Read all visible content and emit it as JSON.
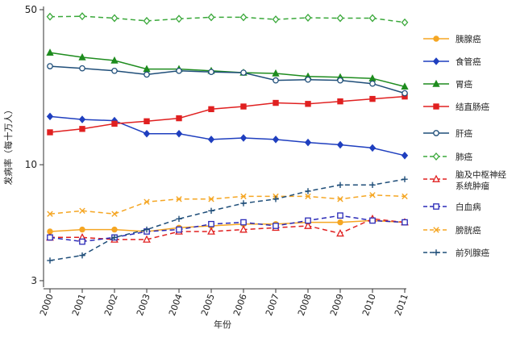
{
  "chart_data": {
    "type": "line",
    "title": "",
    "xlabel": "年份",
    "ylabel": "发病率（每十万人）",
    "yscale": "log",
    "ylim": [
      2.9,
      50
    ],
    "yticks": [
      3,
      10,
      50
    ],
    "ytick_labels": [
      "3",
      "10",
      "50"
    ],
    "x": [
      "2000",
      "2001",
      "2002",
      "2003",
      "2004",
      "2005",
      "2006",
      "2007",
      "2008",
      "2009",
      "2010",
      "2011"
    ],
    "grid": false,
    "legend_position": "right",
    "series": [
      {
        "name": "胰腺癌",
        "color": "#f5a623",
        "marker": "circle-filled",
        "dash": "solid",
        "values": [
          5.0,
          5.1,
          5.1,
          5.0,
          5.2,
          5.3,
          5.4,
          5.4,
          5.5,
          5.5,
          5.6,
          5.5
        ]
      },
      {
        "name": "食管癌",
        "color": "#1f3fbf",
        "marker": "diamond-filled",
        "dash": "solid",
        "values": [
          16.5,
          16.0,
          15.8,
          13.8,
          13.8,
          13.0,
          13.2,
          13.0,
          12.6,
          12.3,
          11.9,
          11.0
        ]
      },
      {
        "name": "胃癌",
        "color": "#1e8c1e",
        "marker": "triangle-filled",
        "dash": "solid",
        "values": [
          32.0,
          30.5,
          29.5,
          27.0,
          27.0,
          26.5,
          26.0,
          25.8,
          25.0,
          24.8,
          24.5,
          22.5
        ]
      },
      {
        "name": "结直肠癌",
        "color": "#e02020",
        "marker": "square-filled",
        "dash": "solid",
        "values": [
          14.0,
          14.5,
          15.3,
          15.7,
          16.2,
          17.8,
          18.3,
          19.0,
          18.8,
          19.3,
          19.8,
          20.3
        ]
      },
      {
        "name": "肝癌",
        "color": "#1f4e79",
        "marker": "circle-open",
        "dash": "solid",
        "values": [
          27.8,
          27.2,
          26.5,
          25.5,
          26.5,
          26.2,
          26.0,
          24.0,
          24.2,
          24.0,
          23.2,
          21.0
        ]
      },
      {
        "name": "肺癌",
        "color": "#3aa83a",
        "marker": "diamond-open",
        "dash": "dashed",
        "values": [
          46.5,
          46.7,
          45.8,
          44.5,
          45.5,
          46.2,
          46.2,
          45.2,
          46.0,
          45.8,
          45.8,
          43.8
        ]
      },
      {
        "name": "脑及中枢神经系统肿瘤",
        "color": "#e02020",
        "marker": "triangle-open",
        "dash": "dashed",
        "values": [
          4.7,
          4.7,
          4.6,
          4.6,
          5.0,
          5.0,
          5.1,
          5.2,
          5.3,
          4.9,
          5.7,
          5.5
        ]
      },
      {
        "name": "白血病",
        "color": "#2a2ab8",
        "marker": "square-open",
        "dash": "dashed",
        "values": [
          4.7,
          4.5,
          4.7,
          5.0,
          5.1,
          5.4,
          5.5,
          5.3,
          5.6,
          5.9,
          5.6,
          5.5
        ]
      },
      {
        "name": "膀胱癌",
        "color": "#f5a623",
        "marker": "x",
        "dash": "dashed",
        "values": [
          6.0,
          6.2,
          6.0,
          6.8,
          7.0,
          7.0,
          7.2,
          7.2,
          7.2,
          7.0,
          7.3,
          7.2
        ]
      },
      {
        "name": "前列腺癌",
        "color": "#1f4e79",
        "marker": "plus",
        "dash": "dashed",
        "values": [
          3.7,
          3.9,
          4.7,
          5.1,
          5.7,
          6.2,
          6.7,
          7.0,
          7.6,
          8.1,
          8.1,
          8.6
        ]
      }
    ]
  }
}
